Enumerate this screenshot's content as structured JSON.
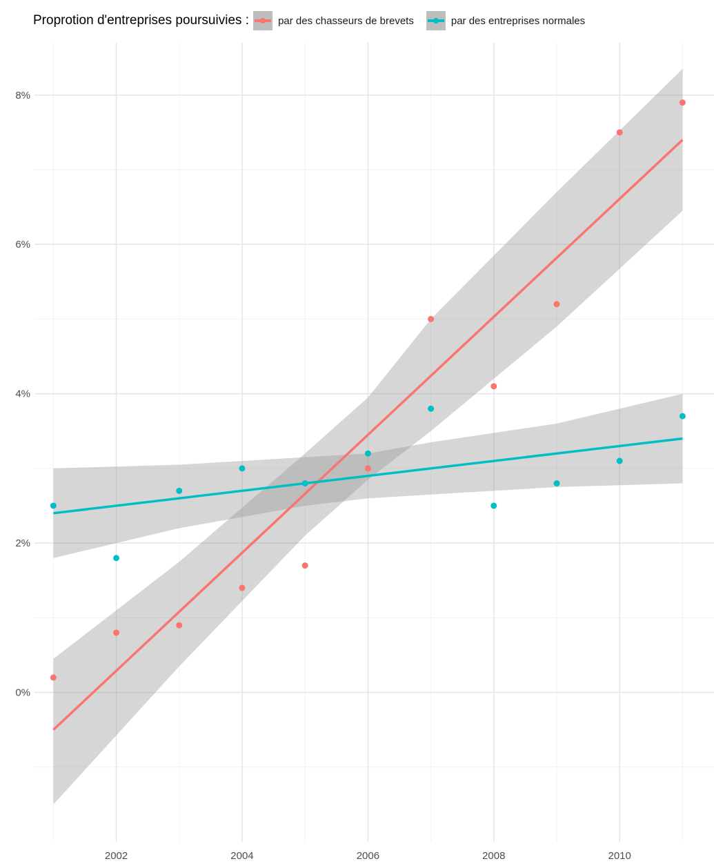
{
  "chart_data": {
    "type": "scatter",
    "legend_title": "Proprotion d'entreprises poursuivies :",
    "legend_position": "top",
    "x_ticks": [
      "2002",
      "2004",
      "2006",
      "2008",
      "2010"
    ],
    "y_ticks": [
      "0%",
      "2%",
      "4%",
      "6%",
      "8%"
    ],
    "xlim": [
      2000.7,
      2011.5
    ],
    "ylim": [
      -2.0,
      8.7
    ],
    "grid": true,
    "series": [
      {
        "name": "par des chasseurs de brevets",
        "color": "#F8766D",
        "x": [
          2001,
          2002,
          2003,
          2004,
          2005,
          2006,
          2007,
          2008,
          2009,
          2010,
          2011
        ],
        "y": [
          0.2,
          0.8,
          0.9,
          1.4,
          1.7,
          3.0,
          5.0,
          4.1,
          5.2,
          7.5,
          7.9
        ],
        "fit": {
          "x": [
            2001,
            2011
          ],
          "y": [
            -0.5,
            7.4
          ]
        },
        "ci": {
          "x": [
            2001,
            2003,
            2005,
            2006,
            2007,
            2009,
            2011
          ],
          "lower": [
            -1.5,
            0.35,
            2.1,
            2.85,
            3.5,
            4.9,
            6.45
          ],
          "upper": [
            0.45,
            1.75,
            3.2,
            3.95,
            5.0,
            6.7,
            8.35
          ]
        }
      },
      {
        "name": "par des entreprises normales",
        "color": "#00BFC4",
        "x": [
          2001,
          2002,
          2003,
          2004,
          2005,
          2006,
          2007,
          2008,
          2009,
          2010,
          2011
        ],
        "y": [
          2.5,
          1.8,
          2.7,
          3.0,
          2.8,
          3.2,
          3.8,
          2.5,
          2.8,
          3.1,
          3.7
        ],
        "fit": {
          "x": [
            2001,
            2011
          ],
          "y": [
            2.4,
            3.4
          ]
        },
        "ci": {
          "x": [
            2001,
            2003,
            2005,
            2006,
            2007,
            2009,
            2011
          ],
          "lower": [
            1.8,
            2.2,
            2.5,
            2.6,
            2.65,
            2.75,
            2.8
          ],
          "upper": [
            3.0,
            3.05,
            3.15,
            3.2,
            3.35,
            3.6,
            4.0
          ]
        }
      }
    ]
  }
}
